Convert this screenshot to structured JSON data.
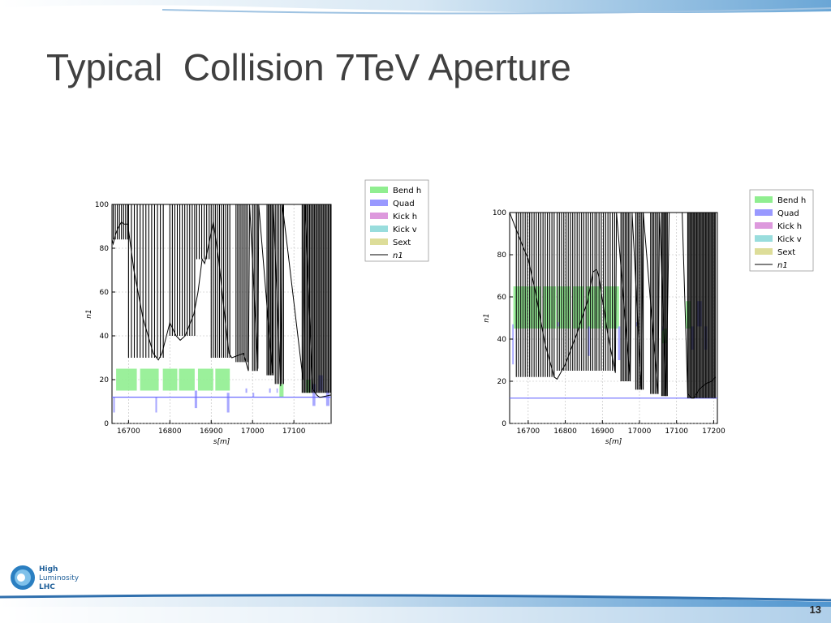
{
  "slide": {
    "title": "Typical  Collision 7TeV Aperture",
    "page_number": "13",
    "logo_text": [
      "High",
      "Luminosity",
      "LHC"
    ]
  },
  "colors": {
    "bend": "#90ee90",
    "quad": "#9999ff",
    "kick_h": "#dd99dd",
    "kick_v": "#99dddd",
    "sext": "#dddd99",
    "n1": "#000000",
    "beam_line": "#6b6bff",
    "title": "#404040"
  },
  "chart_data": [
    {
      "type": "line",
      "xlabel": "s[m]",
      "ylabel": "n1",
      "xlim": [
        16660,
        17190
      ],
      "ylim": [
        0,
        100
      ],
      "xticks": [
        16700,
        16800,
        16900,
        17000,
        17100
      ],
      "yticks": [
        0,
        20,
        40,
        60,
        80,
        100
      ],
      "grid": true,
      "legend_position": "outside-top-right",
      "legend": [
        "Bend h",
        "Quad",
        "Kick h",
        "Kick v",
        "Sext",
        "n1"
      ],
      "horizontal_line_y": 12,
      "bends": [
        {
          "start": 16670,
          "end": 16720,
          "y1": 15,
          "y2": 25
        },
        {
          "start": 16728,
          "end": 16773,
          "y1": 15,
          "y2": 25
        },
        {
          "start": 16783,
          "end": 16818,
          "y1": 15,
          "y2": 25
        },
        {
          "start": 16822,
          "end": 16860,
          "y1": 15,
          "y2": 25
        },
        {
          "start": 16868,
          "end": 16905,
          "y1": 15,
          "y2": 25
        },
        {
          "start": 16910,
          "end": 16945,
          "y1": 15,
          "y2": 25
        },
        {
          "start": 17065,
          "end": 17075,
          "y1": 12,
          "y2": 18
        },
        {
          "start": 17130,
          "end": 17140,
          "y1": 14,
          "y2": 20
        }
      ],
      "quads": [
        {
          "start": 16663,
          "end": 16667,
          "y1": 5,
          "y2": 12
        },
        {
          "start": 16765,
          "end": 16769,
          "y1": 5,
          "y2": 12
        },
        {
          "start": 16860,
          "end": 16866,
          "y1": 7,
          "y2": 15
        },
        {
          "start": 16938,
          "end": 16944,
          "y1": 5,
          "y2": 14
        },
        {
          "start": 16983,
          "end": 16987,
          "y1": 14,
          "y2": 16
        },
        {
          "start": 17000,
          "end": 17004,
          "y1": 12,
          "y2": 14
        },
        {
          "start": 17040,
          "end": 17044,
          "y1": 14,
          "y2": 16
        },
        {
          "start": 17058,
          "end": 17061,
          "y1": 14,
          "y2": 16
        },
        {
          "start": 17145,
          "end": 17152,
          "y1": 8,
          "y2": 18
        },
        {
          "start": 17160,
          "end": 17170,
          "y1": 15,
          "y2": 22
        },
        {
          "start": 17178,
          "end": 17186,
          "y1": 8,
          "y2": 15
        }
      ],
      "n1": {
        "x": [
          16660,
          16663,
          16668,
          16674,
          16683,
          16688,
          16698,
          16713,
          16735,
          16760,
          16772,
          16781,
          16800,
          16815,
          16825,
          16837,
          16858,
          16868,
          16878,
          16884,
          16890,
          16905,
          16918,
          16935,
          16943,
          16950,
          16978,
          16990,
          16993,
          17013,
          17015,
          17048,
          17050,
          17068,
          17072,
          17122,
          17127,
          17145,
          17155,
          17162,
          17165,
          17190
        ],
        "y": [
          84,
          82,
          86,
          89,
          92,
          91,
          91,
          70,
          48,
          32,
          29,
          32,
          46,
          40,
          38,
          40,
          50,
          60,
          75,
          73,
          78,
          92,
          75,
          45,
          32,
          30,
          32,
          24,
          100,
          25,
          100,
          23,
          100,
          17,
          100,
          20,
          100,
          16,
          13,
          12,
          12,
          13
        ]
      },
      "aperture_segments": [
        {
          "start": 16663,
          "end": 16700,
          "spacing": 5,
          "bottom_y": 84
        },
        {
          "start": 16700,
          "end": 16790,
          "spacing": 7,
          "bottom_y": 30
        },
        {
          "start": 16800,
          "end": 16860,
          "spacing": 6,
          "bottom_y": 40
        },
        {
          "start": 16865,
          "end": 16900,
          "spacing": 6,
          "bottom_y": 75
        },
        {
          "start": 16900,
          "end": 16945,
          "spacing": 5,
          "bottom_y": 30
        },
        {
          "start": 16960,
          "end": 16990,
          "spacing": 4,
          "bottom_y": 28
        },
        {
          "start": 17000,
          "end": 17015,
          "spacing": 4,
          "bottom_y": 24
        },
        {
          "start": 17035,
          "end": 17050,
          "spacing": 3,
          "bottom_y": 22
        },
        {
          "start": 17055,
          "end": 17075,
          "spacing": 4,
          "bottom_y": 18
        },
        {
          "start": 17120,
          "end": 17190,
          "spacing": 3,
          "bottom_y": 14
        }
      ]
    },
    {
      "type": "line",
      "xlabel": "s[m]",
      "ylabel": "n1",
      "xlim": [
        16650,
        17210
      ],
      "ylim": [
        0,
        100
      ],
      "xticks": [
        16700,
        16800,
        16900,
        17000,
        17100,
        17200
      ],
      "yticks": [
        0,
        20,
        40,
        60,
        80,
        100
      ],
      "grid": true,
      "legend_position": "outside-top-right",
      "legend": [
        "Bend h",
        "Quad",
        "Kick h",
        "Kick v",
        "Sext",
        "n1"
      ],
      "horizontal_line_y": 12,
      "bends": [
        {
          "start": 16660,
          "end": 16698,
          "y1": 45,
          "y2": 65
        },
        {
          "start": 16700,
          "end": 16735,
          "y1": 45,
          "y2": 65
        },
        {
          "start": 16740,
          "end": 16775,
          "y1": 45,
          "y2": 65
        },
        {
          "start": 16780,
          "end": 16815,
          "y1": 45,
          "y2": 65
        },
        {
          "start": 16820,
          "end": 16850,
          "y1": 45,
          "y2": 65
        },
        {
          "start": 16855,
          "end": 16895,
          "y1": 45,
          "y2": 65
        },
        {
          "start": 16905,
          "end": 16945,
          "y1": 45,
          "y2": 65
        },
        {
          "start": 17060,
          "end": 17075,
          "y1": 38,
          "y2": 45
        },
        {
          "start": 17125,
          "end": 17140,
          "y1": 45,
          "y2": 58
        }
      ],
      "quads": [
        {
          "start": 16657,
          "end": 16661,
          "y1": 28,
          "y2": 47
        },
        {
          "start": 16780,
          "end": 16784,
          "y1": 46,
          "y2": 48
        },
        {
          "start": 16860,
          "end": 16866,
          "y1": 32,
          "y2": 46
        },
        {
          "start": 16942,
          "end": 16948,
          "y1": 30,
          "y2": 46
        },
        {
          "start": 16990,
          "end": 16994,
          "y1": 46,
          "y2": 48
        },
        {
          "start": 17060,
          "end": 17064,
          "y1": 44,
          "y2": 46
        },
        {
          "start": 17140,
          "end": 17147,
          "y1": 35,
          "y2": 46
        },
        {
          "start": 17155,
          "end": 17168,
          "y1": 46,
          "y2": 58
        },
        {
          "start": 17175,
          "end": 17182,
          "y1": 35,
          "y2": 46
        }
      ],
      "n1": {
        "x": [
          16650,
          16672,
          16690,
          16700,
          16720,
          16745,
          16770,
          16778,
          16800,
          16830,
          16860,
          16875,
          16885,
          16890,
          16915,
          16935,
          16938,
          16975,
          16980,
          17005,
          17010,
          17050,
          17054,
          17072,
          17080,
          17115,
          17130,
          17140,
          17147,
          17160,
          17180,
          17195,
          17205
        ],
        "y": [
          100,
          90,
          82,
          78,
          62,
          38,
          22,
          21,
          28,
          42,
          58,
          72,
          73,
          70,
          42,
          24,
          100,
          20,
          100,
          16,
          100,
          14,
          100,
          13,
          100,
          100,
          14,
          12,
          12,
          16,
          19,
          20,
          22
        ]
      },
      "aperture_segments": [
        {
          "start": 16668,
          "end": 16775,
          "spacing": 6,
          "bottom_y": 22
        },
        {
          "start": 16778,
          "end": 16880,
          "spacing": 6,
          "bottom_y": 25
        },
        {
          "start": 16885,
          "end": 16935,
          "spacing": 6,
          "bottom_y": 25
        },
        {
          "start": 16950,
          "end": 16975,
          "spacing": 4,
          "bottom_y": 20
        },
        {
          "start": 16990,
          "end": 17010,
          "spacing": 4,
          "bottom_y": 16
        },
        {
          "start": 17030,
          "end": 17050,
          "spacing": 4,
          "bottom_y": 14
        },
        {
          "start": 17060,
          "end": 17075,
          "spacing": 3,
          "bottom_y": 13
        },
        {
          "start": 17130,
          "end": 17205,
          "spacing": 3,
          "bottom_y": 12
        }
      ]
    }
  ]
}
